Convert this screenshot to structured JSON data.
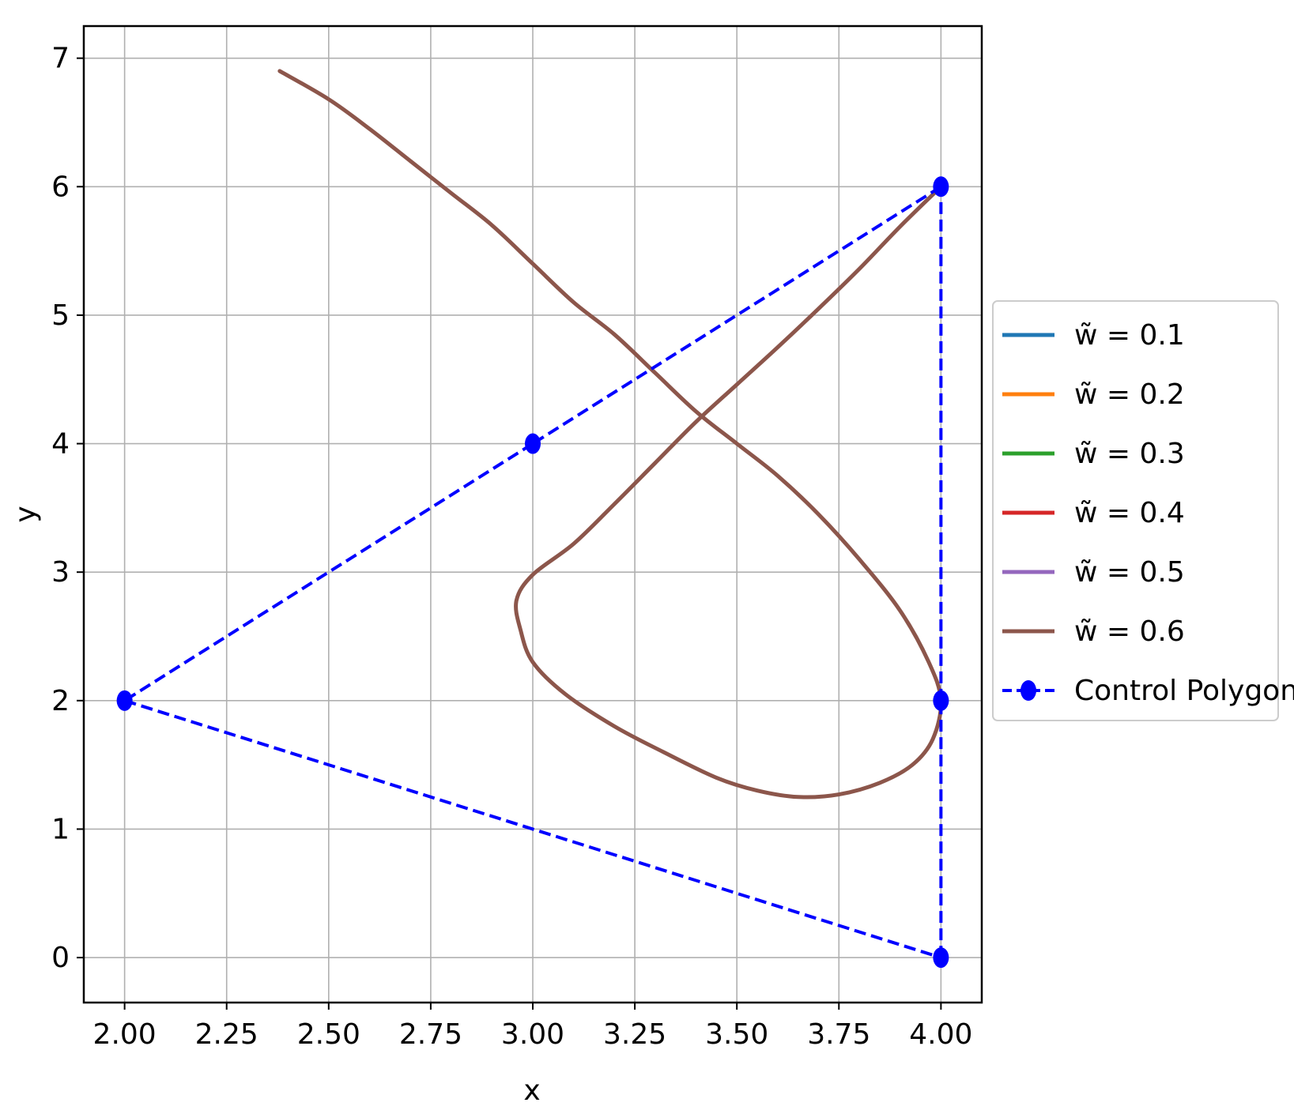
{
  "chart_data": {
    "type": "line",
    "title": "",
    "xlabel": "x",
    "ylabel": "y",
    "xlim": [
      1.9,
      4.1
    ],
    "ylim": [
      -0.35,
      7.25
    ],
    "grid": true,
    "legend_placement": "center-right outside",
    "x_ticks": [
      2.0,
      2.25,
      2.5,
      2.75,
      3.0,
      3.25,
      3.5,
      3.75,
      4.0
    ],
    "x_tick_labels": [
      "2.00",
      "2.25",
      "2.50",
      "2.75",
      "3.00",
      "3.25",
      "3.50",
      "3.75",
      "4.00"
    ],
    "y_ticks": [
      0,
      1,
      2,
      3,
      4,
      5,
      6,
      7
    ],
    "y_tick_labels": [
      "0",
      "1",
      "2",
      "3",
      "4",
      "5",
      "6",
      "7"
    ],
    "series": [
      {
        "name": "w̃ = 0.1",
        "color": "#1f77b4",
        "kind": "curve",
        "points": []
      },
      {
        "name": "w̃ = 0.2",
        "color": "#ff7f0e",
        "kind": "curve",
        "points": []
      },
      {
        "name": "w̃ = 0.3",
        "color": "#2ca02c",
        "kind": "curve",
        "points": []
      },
      {
        "name": "w̃ = 0.4",
        "color": "#d62728",
        "kind": "curve",
        "points": []
      },
      {
        "name": "w̃ = 0.5",
        "color": "#9467bd",
        "kind": "curve",
        "points": []
      },
      {
        "name": "w̃ = 0.6",
        "color": "#8c564b",
        "kind": "curve",
        "points": [
          [
            4.0,
            6.0
          ],
          [
            3.9,
            5.69
          ],
          [
            3.8,
            5.36
          ],
          [
            3.7,
            5.05
          ],
          [
            3.6,
            4.75
          ],
          [
            3.5,
            4.46
          ],
          [
            3.4,
            4.17
          ],
          [
            3.3,
            3.85
          ],
          [
            3.2,
            3.53
          ],
          [
            3.1,
            3.22
          ],
          [
            3.0,
            2.98
          ],
          [
            2.96,
            2.78
          ],
          [
            2.97,
            2.55
          ],
          [
            3.0,
            2.3
          ],
          [
            3.08,
            2.05
          ],
          [
            3.2,
            1.8
          ],
          [
            3.32,
            1.6
          ],
          [
            3.45,
            1.4
          ],
          [
            3.55,
            1.3
          ],
          [
            3.65,
            1.25
          ],
          [
            3.75,
            1.27
          ],
          [
            3.85,
            1.36
          ],
          [
            3.93,
            1.5
          ],
          [
            3.98,
            1.7
          ],
          [
            4.0,
            2.0
          ],
          [
            3.97,
            2.3
          ],
          [
            3.9,
            2.7
          ],
          [
            3.8,
            3.1
          ],
          [
            3.7,
            3.45
          ],
          [
            3.6,
            3.75
          ],
          [
            3.5,
            4.0
          ],
          [
            3.4,
            4.25
          ],
          [
            3.3,
            4.55
          ],
          [
            3.2,
            4.85
          ],
          [
            3.1,
            5.1
          ],
          [
            3.0,
            5.4
          ],
          [
            2.9,
            5.7
          ],
          [
            2.8,
            5.95
          ],
          [
            2.7,
            6.2
          ],
          [
            2.6,
            6.45
          ],
          [
            2.5,
            6.68
          ],
          [
            2.38,
            6.9
          ]
        ]
      },
      {
        "name": "Control Polygon",
        "color": "#0000ff",
        "kind": "polygon",
        "points": [
          [
            4,
            6
          ],
          [
            3,
            4
          ],
          [
            2,
            2
          ],
          [
            4,
            0
          ],
          [
            4,
            2
          ],
          [
            4,
            6
          ]
        ]
      }
    ]
  }
}
